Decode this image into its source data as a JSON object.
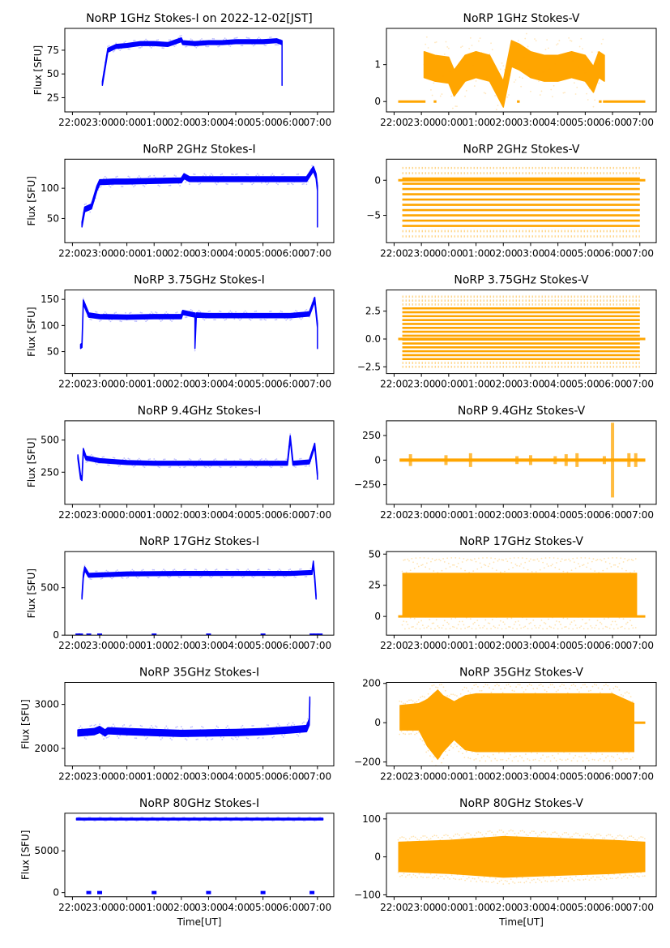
{
  "figure": {
    "type": "multi-panel time series",
    "rows": 7,
    "cols": 2
  },
  "chart_data": [
    {
      "type": "scatter",
      "title": "NoRP 1GHz Stokes-I on 2022-12-02[JST]",
      "xlabel": "",
      "ylabel": "Flux [SFU]",
      "color": "#0000ff",
      "xticks": [
        "22:00",
        "23:00",
        "00:00",
        "01:00",
        "02:00",
        "03:00",
        "04:00",
        "05:00",
        "06:00",
        "07:00"
      ],
      "xlim_hours": [
        21.72,
        31.6
      ],
      "ylim": [
        10,
        98
      ],
      "yticks": [
        25,
        50,
        75
      ],
      "series": [
        {
          "name": "Stokes-I",
          "x_hours": [
            23.1,
            23.3,
            23.6,
            24.0,
            24.5,
            25.0,
            25.5,
            26.0,
            26.05,
            26.5,
            27.0,
            27.5,
            28.0,
            28.5,
            29.0,
            29.5,
            29.7,
            29.7
          ],
          "values": [
            40,
            75,
            79,
            80,
            82,
            82,
            81,
            86,
            83,
            82,
            83,
            83,
            84,
            84,
            84,
            85,
            83,
            40
          ],
          "band_halfwidth": 2
        }
      ]
    },
    {
      "type": "scatter",
      "title": "NoRP 1GHz Stokes-V",
      "xlabel": "",
      "ylabel": "",
      "color": "#ffa500",
      "xticks": [
        "22:00",
        "23:00",
        "00:00",
        "01:00",
        "02:00",
        "03:00",
        "04:00",
        "05:00",
        "06:00",
        "07:00"
      ],
      "xlim_hours": [
        21.72,
        31.6
      ],
      "ylim": [
        -0.28,
        1.98
      ],
      "yticks": [
        0,
        1
      ],
      "series": [
        {
          "name": "Stokes-V",
          "x_hours": [
            23.1,
            23.5,
            24.0,
            24.2,
            24.6,
            25.0,
            25.5,
            26.0,
            26.3,
            26.6,
            27.0,
            27.5,
            28.0,
            28.5,
            29.0,
            29.3,
            29.5,
            29.7
          ],
          "values": [
            1.0,
            0.9,
            0.85,
            0.5,
            0.9,
            1.0,
            0.9,
            0.2,
            1.3,
            1.2,
            1.0,
            0.9,
            0.9,
            1.0,
            0.9,
            0.6,
            1.0,
            0.9
          ],
          "band_halfwidth": 0.35,
          "zero_segments": [
            [
              22.15,
              23.15
            ],
            [
              23.45,
              23.55
            ],
            [
              26.5,
              26.6
            ],
            [
              29.5,
              29.6
            ],
            [
              29.65,
              31.2
            ]
          ]
        }
      ]
    },
    {
      "type": "scatter",
      "title": "NoRP 2GHz Stokes-I",
      "xlabel": "",
      "ylabel": "Flux [SFU]",
      "color": "#0000ff",
      "xticks": [
        "22:00",
        "23:00",
        "00:00",
        "01:00",
        "02:00",
        "03:00",
        "04:00",
        "05:00",
        "06:00",
        "07:00"
      ],
      "xlim_hours": [
        21.72,
        31.6
      ],
      "ylim": [
        10,
        148
      ],
      "yticks": [
        50,
        100
      ],
      "series": [
        {
          "name": "Stokes-I",
          "x_hours": [
            22.35,
            22.45,
            22.7,
            22.9,
            23.0,
            23.5,
            24.0,
            25.0,
            26.0,
            26.1,
            26.3,
            27.0,
            28.0,
            29.0,
            30.0,
            30.6,
            30.85,
            30.95,
            31.0,
            31.0
          ],
          "values": [
            40,
            65,
            70,
            100,
            110,
            111,
            111,
            112,
            113,
            120,
            115,
            115,
            115,
            115,
            115,
            115,
            132,
            120,
            100,
            40
          ],
          "band_halfwidth": 4
        }
      ]
    },
    {
      "type": "scatter",
      "title": "NoRP 2GHz Stokes-V",
      "xlabel": "",
      "ylabel": "",
      "color": "#ffa500",
      "xticks": [
        "22:00",
        "23:00",
        "00:00",
        "01:00",
        "02:00",
        "03:00",
        "04:00",
        "05:00",
        "06:00",
        "07:00"
      ],
      "xlim_hours": [
        21.72,
        31.6
      ],
      "ylim": [
        -8.9,
        3.0
      ],
      "yticks": [
        -5,
        0
      ],
      "series": [
        {
          "name": "Stokes-V",
          "quantized_levels_range": [
            -8,
            2
          ],
          "level_step": 0.75,
          "x_range_hours": [
            22.3,
            31.0
          ],
          "zero_segments": [
            [
              22.15,
              31.2
            ]
          ]
        }
      ]
    },
    {
      "type": "scatter",
      "title": "NoRP 3.75GHz Stokes-I",
      "xlabel": "",
      "ylabel": "Flux [SFU]",
      "color": "#0000ff",
      "xticks": [
        "22:00",
        "23:00",
        "00:00",
        "01:00",
        "02:00",
        "03:00",
        "04:00",
        "05:00",
        "06:00",
        "07:00"
      ],
      "xlim_hours": [
        21.72,
        31.6
      ],
      "ylim": [
        8,
        168
      ],
      "yticks": [
        50,
        100,
        150
      ],
      "series": [
        {
          "name": "Stokes-I",
          "x_hours": [
            22.3,
            22.35,
            22.4,
            22.6,
            23.0,
            24.0,
            25.0,
            26.0,
            26.05,
            26.5,
            26.5,
            26.55,
            27.0,
            28.0,
            29.0,
            30.0,
            30.7,
            30.9,
            31.0,
            31.0
          ],
          "values": [
            60,
            62,
            145,
            120,
            117,
            116,
            117,
            117,
            125,
            120,
            60,
            120,
            119,
            119,
            119,
            119,
            122,
            150,
            100,
            60
          ],
          "band_halfwidth": 4
        }
      ]
    },
    {
      "type": "scatter",
      "title": "NoRP 3.75GHz Stokes-V",
      "xlabel": "",
      "ylabel": "",
      "color": "#ffa500",
      "xticks": [
        "22:00",
        "23:00",
        "00:00",
        "01:00",
        "02:00",
        "03:00",
        "04:00",
        "05:00",
        "06:00",
        "07:00"
      ],
      "xlim_hours": [
        21.72,
        31.6
      ],
      "ylim": [
        -3.1,
        4.4
      ],
      "yticks": [
        -2.5,
        0.0,
        2.5
      ],
      "series": [
        {
          "name": "Stokes-V",
          "quantized_levels_range": [
            -2.5,
            3.8
          ],
          "level_step": 0.35,
          "x_range_hours": [
            22.3,
            31.0
          ],
          "zero_segments": [
            [
              22.15,
              31.2
            ]
          ]
        }
      ]
    },
    {
      "type": "scatter",
      "title": "NoRP 9.4GHz Stokes-I",
      "xlabel": "",
      "ylabel": "Flux [SFU]",
      "color": "#0000ff",
      "xticks": [
        "22:00",
        "23:00",
        "00:00",
        "01:00",
        "02:00",
        "03:00",
        "04:00",
        "05:00",
        "06:00",
        "07:00"
      ],
      "xlim_hours": [
        21.72,
        31.6
      ],
      "ylim": [
        0,
        650
      ],
      "yticks": [
        250,
        500
      ],
      "series": [
        {
          "name": "Stokes-I",
          "x_hours": [
            22.2,
            22.3,
            22.35,
            22.4,
            22.5,
            23.0,
            24.0,
            25.0,
            26.0,
            27.0,
            28.0,
            29.0,
            29.9,
            30.0,
            30.1,
            30.7,
            30.9,
            31.0,
            31.0
          ],
          "values": [
            370,
            210,
            200,
            420,
            360,
            340,
            325,
            320,
            320,
            320,
            320,
            320,
            320,
            520,
            320,
            330,
            460,
            230,
            210
          ],
          "band_halfwidth": 15
        }
      ]
    },
    {
      "type": "scatter",
      "title": "NoRP 9.4GHz Stokes-V",
      "xlabel": "",
      "ylabel": "",
      "color": "#ffa500",
      "xticks": [
        "22:00",
        "23:00",
        "00:00",
        "01:00",
        "02:00",
        "03:00",
        "04:00",
        "05:00",
        "06:00",
        "07:00"
      ],
      "xlim_hours": [
        21.72,
        31.6
      ],
      "ylim": [
        -450,
        400
      ],
      "yticks": [
        -250,
        0,
        250
      ],
      "series": [
        {
          "name": "Stokes-V",
          "baseline": 0,
          "x_range_hours": [
            22.2,
            31.2
          ],
          "bursts": [
            [
              22.6,
              60
            ],
            [
              23.9,
              50
            ],
            [
              24.8,
              70
            ],
            [
              26.5,
              40
            ],
            [
              27.0,
              50
            ],
            [
              27.9,
              40
            ],
            [
              28.3,
              60
            ],
            [
              28.7,
              70
            ],
            [
              29.7,
              40
            ],
            [
              30.0,
              380
            ],
            [
              30.6,
              70
            ],
            [
              30.85,
              70
            ]
          ]
        }
      ]
    },
    {
      "type": "scatter",
      "title": "NoRP 17GHz Stokes-I",
      "xlabel": "",
      "ylabel": "Flux [SFU]",
      "color": "#0000ff",
      "xticks": [
        "22:00",
        "23:00",
        "00:00",
        "01:00",
        "02:00",
        "03:00",
        "04:00",
        "05:00",
        "06:00",
        "07:00"
      ],
      "xlim_hours": [
        21.72,
        31.6
      ],
      "ylim": [
        0,
        880
      ],
      "yticks": [
        0,
        500
      ],
      "series": [
        {
          "name": "Stokes-I",
          "x_hours": [
            22.35,
            22.4,
            22.45,
            22.6,
            24.0,
            26.0,
            28.0,
            30.0,
            30.8,
            30.85,
            30.9,
            30.95
          ],
          "values": [
            400,
            620,
            700,
            630,
            645,
            650,
            650,
            650,
            660,
            760,
            600,
            400
          ],
          "band_halfwidth": 20,
          "zero_points_hours": [
            22.2,
            22.3,
            22.6,
            23.0,
            25.0,
            27.0,
            29.0,
            30.8,
            30.95,
            31.1
          ]
        }
      ]
    },
    {
      "type": "scatter",
      "title": "NoRP 17GHz Stokes-V",
      "xlabel": "",
      "ylabel": "",
      "color": "#ffa500",
      "xticks": [
        "22:00",
        "23:00",
        "00:00",
        "01:00",
        "02:00",
        "03:00",
        "04:00",
        "05:00",
        "06:00",
        "07:00"
      ],
      "xlim_hours": [
        21.72,
        31.6
      ],
      "ylim": [
        -15,
        52
      ],
      "yticks": [
        0,
        25,
        50
      ],
      "series": [
        {
          "name": "Stokes-V",
          "band": [
            0,
            35
          ],
          "x_range_hours": [
            22.3,
            30.9
          ],
          "zero_segments": [
            [
              22.15,
              31.2
            ]
          ]
        }
      ]
    },
    {
      "type": "scatter",
      "title": "NoRP 35GHz Stokes-I",
      "xlabel": "",
      "ylabel": "Flux [SFU]",
      "color": "#0000ff",
      "xticks": [
        "22:00",
        "23:00",
        "00:00",
        "01:00",
        "02:00",
        "03:00",
        "04:00",
        "05:00",
        "06:00",
        "07:00"
      ],
      "xlim_hours": [
        21.72,
        31.6
      ],
      "ylim": [
        1600,
        3500
      ],
      "yticks": [
        2000,
        3000
      ],
      "series": [
        {
          "name": "Stokes-I",
          "x_hours": [
            22.2,
            22.8,
            23.0,
            23.2,
            23.3,
            24.0,
            25.0,
            26.0,
            27.0,
            28.0,
            29.0,
            30.0,
            30.6,
            30.7,
            30.72
          ],
          "values": [
            2350,
            2380,
            2430,
            2350,
            2400,
            2380,
            2360,
            2340,
            2350,
            2360,
            2380,
            2420,
            2450,
            2600,
            3100
          ],
          "band_halfwidth": 70
        }
      ]
    },
    {
      "type": "scatter",
      "title": "NoRP 35GHz Stokes-V",
      "xlabel": "",
      "ylabel": "",
      "color": "#ffa500",
      "xticks": [
        "22:00",
        "23:00",
        "00:00",
        "01:00",
        "02:00",
        "03:00",
        "04:00",
        "05:00",
        "06:00",
        "07:00"
      ],
      "xlim_hours": [
        21.72,
        31.6
      ],
      "ylim": [
        -220,
        205
      ],
      "yticks": [
        -200,
        0,
        200
      ],
      "series": [
        {
          "name": "Stokes-V",
          "x_range_hours": [
            22.2,
            30.8
          ],
          "envelope_hours": [
            22.2,
            22.9,
            23.2,
            23.6,
            23.8,
            24.2,
            24.6,
            25.0,
            26.0,
            28.0,
            30.0,
            30.8
          ],
          "upper": [
            90,
            100,
            120,
            170,
            140,
            110,
            140,
            150,
            150,
            150,
            150,
            100
          ],
          "lower": [
            -40,
            -40,
            -120,
            -190,
            -150,
            -90,
            -140,
            -150,
            -150,
            -150,
            -150,
            -150
          ],
          "zero_segments": [
            [
              30.8,
              31.2
            ]
          ]
        }
      ]
    },
    {
      "type": "scatter",
      "title": "NoRP 80GHz Stokes-I",
      "xlabel": "Time[UT]",
      "ylabel": "Flux [SFU]",
      "color": "#0000ff",
      "xticks": [
        "22:00",
        "23:00",
        "00:00",
        "01:00",
        "02:00",
        "03:00",
        "04:00",
        "05:00",
        "06:00",
        "07:00"
      ],
      "xlim_hours": [
        21.72,
        31.6
      ],
      "ylim": [
        -500,
        9500
      ],
      "yticks": [
        0,
        5000
      ],
      "series": [
        {
          "name": "Stokes-I",
          "x_hours": [
            22.15,
            31.2
          ],
          "values": [
            8800,
            8800
          ],
          "band_halfwidth": 100,
          "zero_points_hours": [
            22.6,
            23.0,
            25.0,
            27.0,
            29.0,
            30.8
          ]
        }
      ]
    },
    {
      "type": "scatter",
      "title": "NoRP 80GHz Stokes-V",
      "xlabel": "Time[UT]",
      "ylabel": "",
      "color": "#ffa500",
      "xticks": [
        "22:00",
        "23:00",
        "00:00",
        "01:00",
        "02:00",
        "03:00",
        "04:00",
        "05:00",
        "06:00",
        "07:00"
      ],
      "xlim_hours": [
        21.72,
        31.6
      ],
      "ylim": [
        -105,
        115
      ],
      "yticks": [
        -100,
        0,
        100
      ],
      "series": [
        {
          "name": "Stokes-V",
          "x_range_hours": [
            22.15,
            31.2
          ],
          "envelope_hours": [
            22.15,
            24.0,
            26.0,
            28.0,
            30.0,
            31.2
          ],
          "upper": [
            40,
            45,
            55,
            50,
            45,
            40
          ],
          "lower": [
            -40,
            -45,
            -55,
            -50,
            -45,
            -40
          ]
        }
      ]
    }
  ]
}
